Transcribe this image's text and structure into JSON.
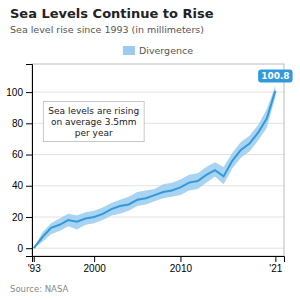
{
  "chart_data": {
    "type": "line",
    "title": "Sea Levels Continue to Rise",
    "subtitle": "Sea level rise since 1993 (in millimeters)",
    "source": "Source: NASA",
    "annotations": [
      "Sea levels are rising\non average 3.5mm\nper year",
      "100.8"
    ],
    "x": [
      1993,
      1994,
      1995,
      1996,
      1997,
      1998,
      1999,
      2000,
      2001,
      2002,
      2003,
      2004,
      2005,
      2006,
      2007,
      2008,
      2009,
      2010,
      2011,
      2012,
      2013,
      2014,
      2015,
      2016,
      2017,
      2018,
      2019,
      2020,
      2021
    ],
    "series": [
      {
        "name": "Divergence",
        "type": "band",
        "color": "#99ccee",
        "upper": [
          0,
          10,
          16,
          19,
          22,
          21,
          23,
          24,
          26,
          29,
          31,
          33,
          36,
          37,
          38,
          41,
          42,
          44,
          47,
          48,
          52,
          55,
          52,
          61,
          68,
          72,
          79,
          89,
          104
        ],
        "lower": [
          0,
          4,
          9,
          11,
          14,
          12,
          15,
          16,
          18,
          21,
          22,
          24,
          27,
          28,
          30,
          32,
          33,
          34,
          37,
          38,
          42,
          46,
          41,
          51,
          58,
          62,
          69,
          77,
          97
        ]
      },
      {
        "type": "line",
        "color": "#3399dd",
        "values": [
          0,
          7,
          13,
          15,
          18,
          17,
          19,
          20,
          22,
          25,
          27,
          28,
          31,
          32,
          34,
          36,
          37,
          39,
          42,
          43,
          47,
          50,
          46,
          56,
          63,
          67,
          74,
          83,
          100.8
        ]
      }
    ],
    "xlim": [
      1992.8,
      2022.0
    ],
    "xticks": [
      {
        "value": 1993,
        "label": "'93"
      },
      2000,
      2010,
      {
        "value": 2021,
        "label": "'21"
      }
    ],
    "ylim": [
      -5,
      118
    ],
    "yticks": [
      0,
      20,
      40,
      60,
      80,
      100
    ],
    "grid": true
  }
}
